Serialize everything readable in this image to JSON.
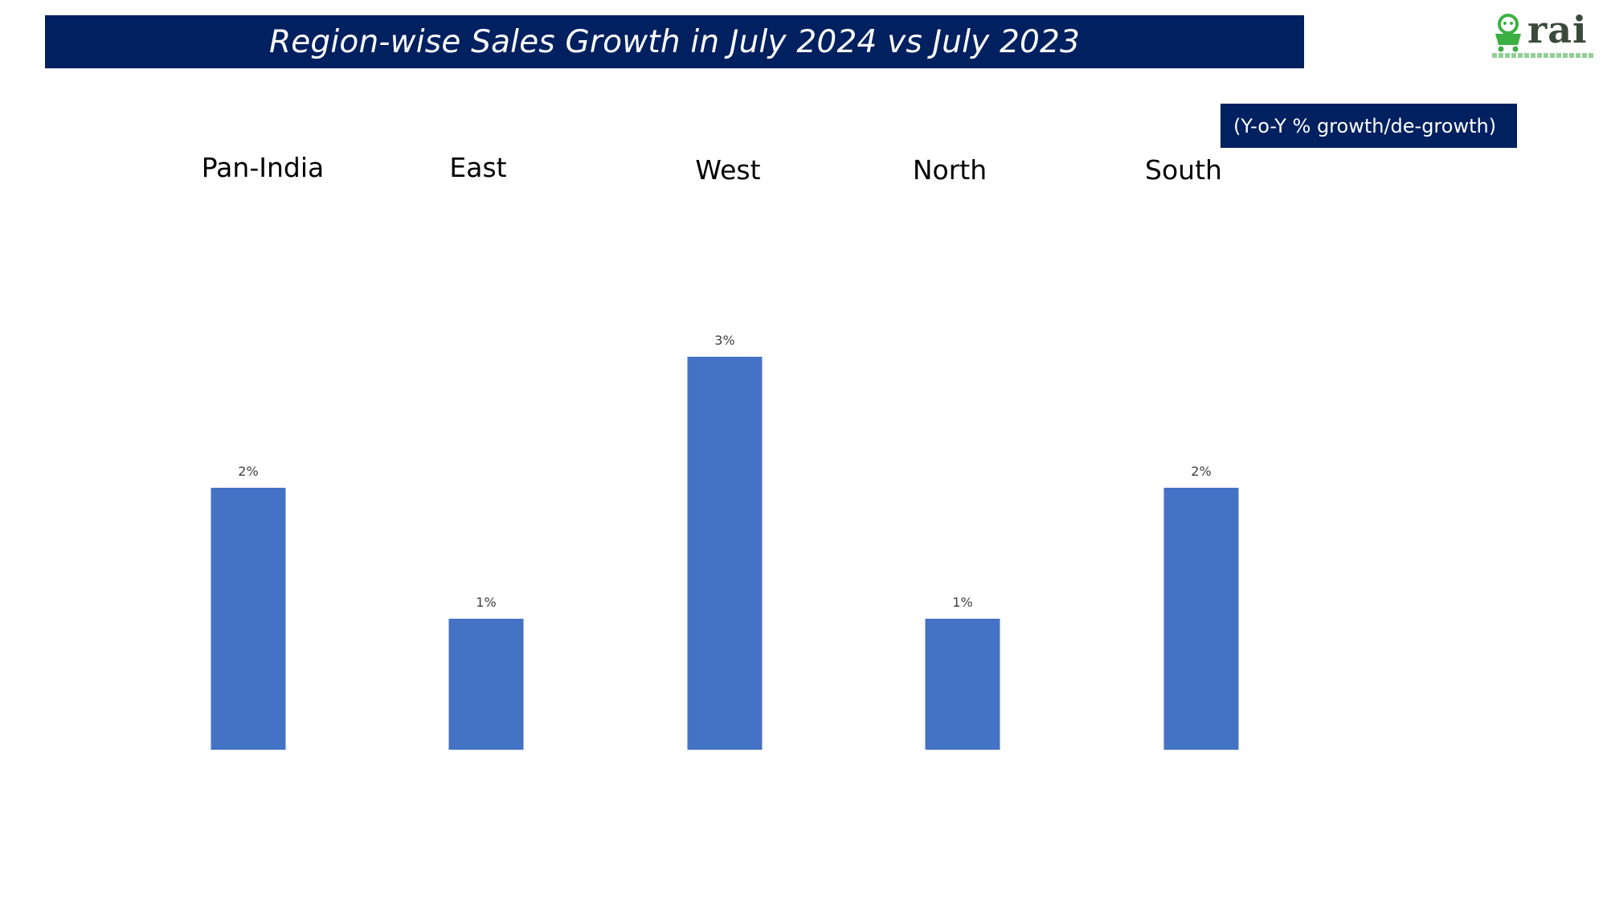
{
  "header": {
    "title": "Region-wise Sales Growth in July 2024 vs July 2023",
    "subtitle": "(Y-o-Y % growth/de-growth)",
    "logo_text": "rai"
  },
  "colors": {
    "header_bg": "#002060",
    "bar": "#4472C4",
    "logo_green": "#3CB043"
  },
  "chart_data": {
    "type": "bar",
    "categories": [
      "Pan-India",
      "East",
      "West",
      "North",
      "South"
    ],
    "values": [
      2,
      1,
      3,
      1,
      2
    ],
    "data_labels": [
      "2%",
      "1%",
      "3%",
      "1%",
      "2%"
    ],
    "unit": "%",
    "ylim": [
      0,
      3
    ],
    "grid": false,
    "legend": "none"
  }
}
